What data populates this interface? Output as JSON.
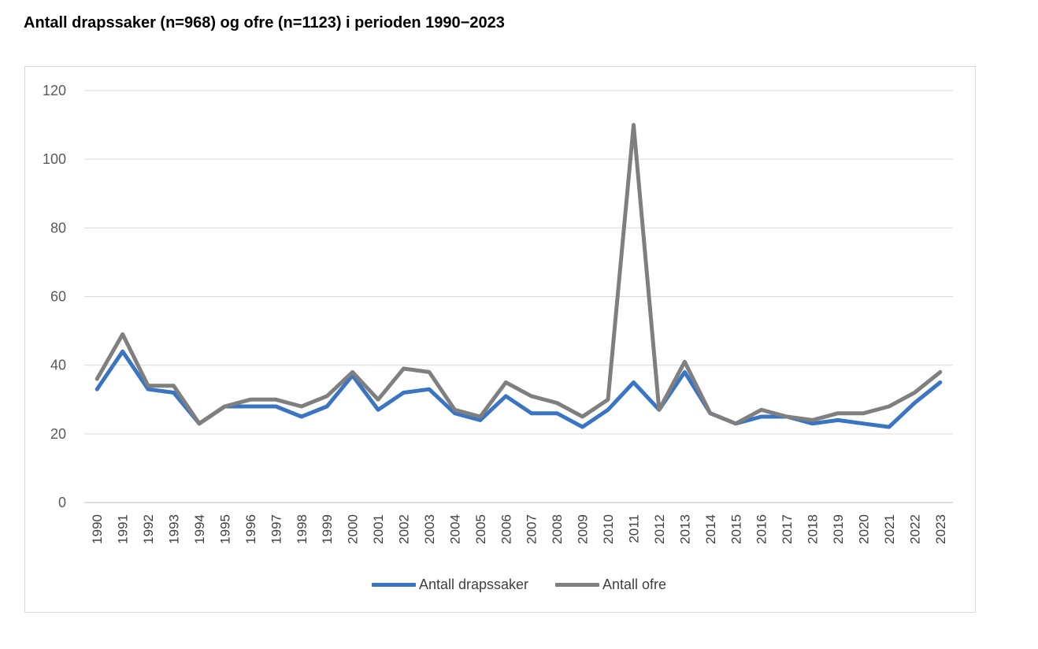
{
  "chart_data": {
    "type": "line",
    "title": "Antall drapssaker (n=968) og ofre (n=1123) i perioden 1990−2023",
    "xlabel": "",
    "ylabel": "",
    "ylim": [
      0,
      120
    ],
    "yticks": [
      "0",
      "20",
      "40",
      "60",
      "80",
      "100",
      "120"
    ],
    "grid": true,
    "legend_position": "bottom",
    "categories": [
      "1990",
      "1991",
      "1992",
      "1993",
      "1994",
      "1995",
      "1996",
      "1997",
      "1998",
      "1999",
      "2000",
      "2001",
      "2002",
      "2003",
      "2004",
      "2005",
      "2006",
      "2007",
      "2008",
      "2009",
      "2010",
      "2011",
      "2012",
      "2013",
      "2014",
      "2015",
      "2016",
      "2017",
      "2018",
      "2019",
      "2020",
      "2021",
      "2022",
      "2023"
    ],
    "series": [
      {
        "name": "Antall drapssaker",
        "color": "#3a75c4",
        "values": [
          33,
          44,
          33,
          32,
          23,
          28,
          28,
          28,
          25,
          28,
          37,
          27,
          32,
          33,
          26,
          24,
          31,
          26,
          26,
          22,
          27,
          35,
          27,
          38,
          26,
          23,
          25,
          25,
          23,
          24,
          23,
          22,
          29,
          35
        ]
      },
      {
        "name": "Antall ofre",
        "color": "#7f7f7f",
        "values": [
          36,
          49,
          34,
          34,
          23,
          28,
          30,
          30,
          28,
          31,
          38,
          30,
          39,
          38,
          27,
          25,
          35,
          31,
          29,
          25,
          30,
          110,
          27,
          41,
          26,
          23,
          27,
          25,
          24,
          26,
          26,
          28,
          32,
          38
        ]
      }
    ]
  }
}
